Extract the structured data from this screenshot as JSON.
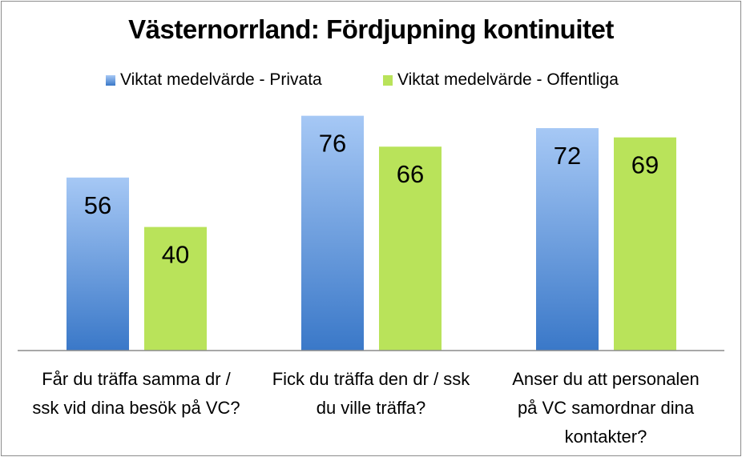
{
  "chart_data": {
    "type": "bar",
    "title": "Västernorrland: Fördjupning kontinuitet",
    "categories": [
      [
        "Får du träffa samma dr /",
        "ssk vid dina besök på VC?"
      ],
      [
        "Fick du träffa den dr / ssk",
        "du ville träffa?"
      ],
      [
        "Anser du att personalen",
        "på VC samordnar dina",
        "kontakter?"
      ]
    ],
    "series": [
      {
        "name": "Viktat medelvärde - Privata",
        "values": [
          56,
          76,
          72
        ],
        "color_top": "#a6c8f5",
        "color_bottom": "#3a78c8"
      },
      {
        "name": "Viktat medelvärde - Offentliga",
        "values": [
          40,
          66,
          69
        ],
        "color_top": "#b9e35a",
        "color_bottom": "#b9e35a"
      }
    ],
    "ylim": [
      0,
      100
    ],
    "legend": "top",
    "grid": false
  }
}
